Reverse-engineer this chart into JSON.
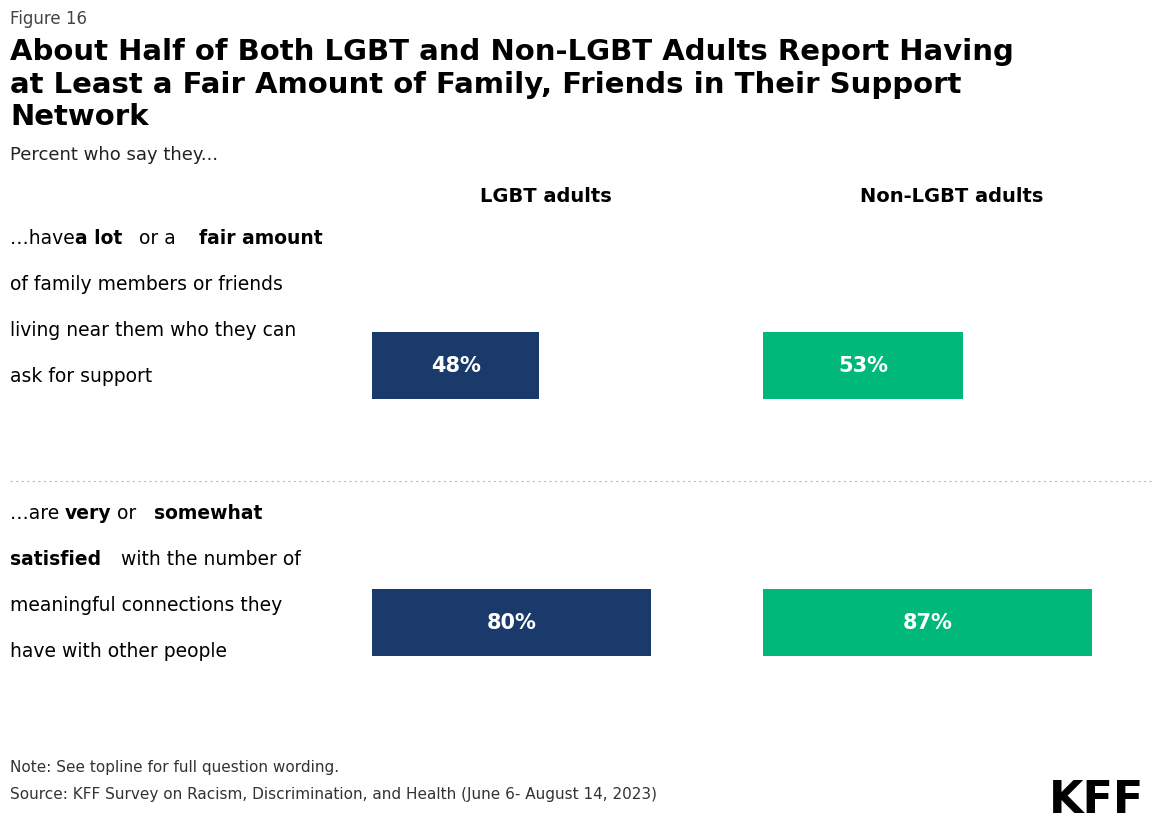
{
  "figure_label": "Figure 16",
  "title_line1": "About Half of Both LGBT and Non-LGBT Adults Report Having",
  "title_line2": "at Least a Fair Amount of Family, Friends in Their Support",
  "title_line3": "Network",
  "subtitle": "Percent who say they...",
  "col_headers": [
    "LGBT adults",
    "Non-LGBT adults"
  ],
  "rows": [
    {
      "row_label_lines": [
        [
          {
            "text": "…have ",
            "bold": false
          },
          {
            "text": "a lot",
            "bold": true
          },
          {
            "text": " or a ",
            "bold": false
          },
          {
            "text": "fair amount",
            "bold": true
          }
        ],
        [
          {
            "text": "of family members or friends",
            "bold": false
          }
        ],
        [
          {
            "text": "living near them who they can",
            "bold": false
          }
        ],
        [
          {
            "text": "ask for support",
            "bold": false
          }
        ]
      ],
      "values": [
        48,
        53
      ],
      "labels": [
        "48%",
        "53%"
      ]
    },
    {
      "row_label_lines": [
        [
          {
            "text": "…are ",
            "bold": false
          },
          {
            "text": "very",
            "bold": true
          },
          {
            "text": " or ",
            "bold": false
          },
          {
            "text": "somewhat",
            "bold": true
          }
        ],
        [
          {
            "text": "satisfied",
            "bold": true
          },
          {
            "text": " with the number of",
            "bold": false
          }
        ],
        [
          {
            "text": "meaningful connections they",
            "bold": false
          }
        ],
        [
          {
            "text": "have with other people",
            "bold": false
          }
        ]
      ],
      "values": [
        80,
        87
      ],
      "labels": [
        "80%",
        "87%"
      ]
    }
  ],
  "bar_colors": [
    "#1a3a6b",
    "#00b87a"
  ],
  "bar_text_color": "#ffffff",
  "note": "Note: See topline for full question wording.",
  "source": "Source: KFF Survey on Racism, Discrimination, and Health (June 6- August 14, 2023)",
  "background_color": "#ffffff",
  "divider_color": "#bbbbbb"
}
